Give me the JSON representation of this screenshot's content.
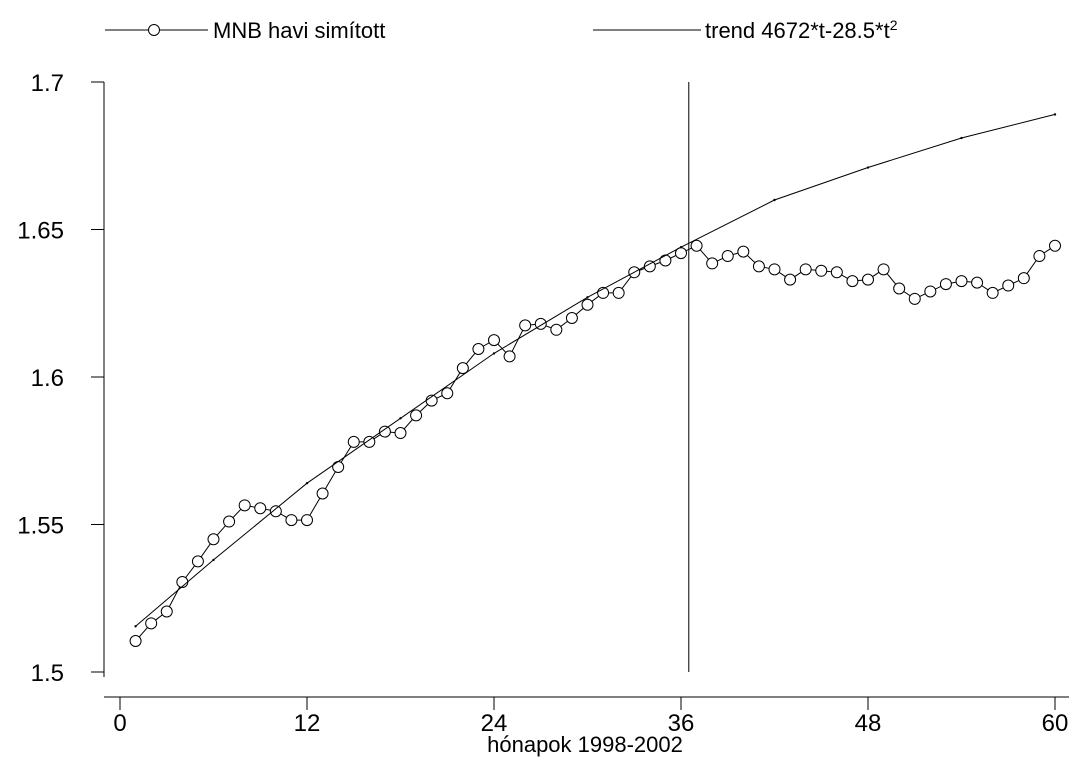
{
  "chart_data": {
    "type": "line",
    "xlabel": "hónapok 1998-2002",
    "ylabel": "",
    "xlim": [
      0,
      60
    ],
    "ylim": [
      1.5,
      1.7
    ],
    "x_ticks": [
      0,
      12,
      24,
      36,
      48,
      60
    ],
    "y_ticks": [
      1.5,
      1.55,
      1.6,
      1.65,
      1.7
    ],
    "y_tick_labels": [
      "1.5",
      "1.55",
      "1.6",
      "1.65",
      "1.7"
    ],
    "vertical_line_x": 36.5,
    "legend_position": "top",
    "series": [
      {
        "name": "MNB havi simított",
        "marker": "circle",
        "x": [
          1,
          2,
          3,
          4,
          5,
          6,
          7,
          8,
          9,
          10,
          11,
          12,
          13,
          14,
          15,
          16,
          17,
          18,
          19,
          20,
          21,
          22,
          23,
          24,
          25,
          26,
          27,
          28,
          29,
          30,
          31,
          32,
          33,
          34,
          35,
          36,
          37,
          38,
          39,
          40,
          41,
          42,
          43,
          44,
          45,
          46,
          47,
          48,
          49,
          50,
          51,
          52,
          53,
          54,
          55,
          56,
          57,
          58,
          59,
          60
        ],
        "values": [
          1.5105,
          1.5165,
          1.5205,
          1.5305,
          1.5375,
          1.545,
          1.551,
          1.5565,
          1.5555,
          1.5545,
          1.5515,
          1.5515,
          1.5605,
          1.5695,
          1.578,
          1.578,
          1.5815,
          1.581,
          1.587,
          1.592,
          1.5945,
          1.603,
          1.6095,
          1.6125,
          1.607,
          1.6175,
          1.618,
          1.616,
          1.62,
          1.6245,
          1.6285,
          1.6285,
          1.6355,
          1.6375,
          1.6395,
          1.642,
          1.6445,
          1.6385,
          1.641,
          1.6425,
          1.6375,
          1.6365,
          1.633,
          1.6365,
          1.636,
          1.6355,
          1.6325,
          1.633,
          1.6365,
          1.63,
          1.6265,
          1.629,
          1.6315,
          1.6325,
          1.632,
          1.6285,
          1.631,
          1.6335,
          1.641,
          1.6445
        ]
      },
      {
        "name": "trend 4672*t-28.5*t",
        "name_superscript": "2",
        "marker": "dot",
        "x": [
          1,
          6,
          12,
          18,
          24,
          30,
          36,
          42,
          48,
          54,
          60
        ],
        "values": [
          1.5155,
          1.538,
          1.564,
          1.586,
          1.608,
          1.627,
          1.644,
          1.66,
          1.671,
          1.681,
          1.689
        ]
      }
    ]
  }
}
